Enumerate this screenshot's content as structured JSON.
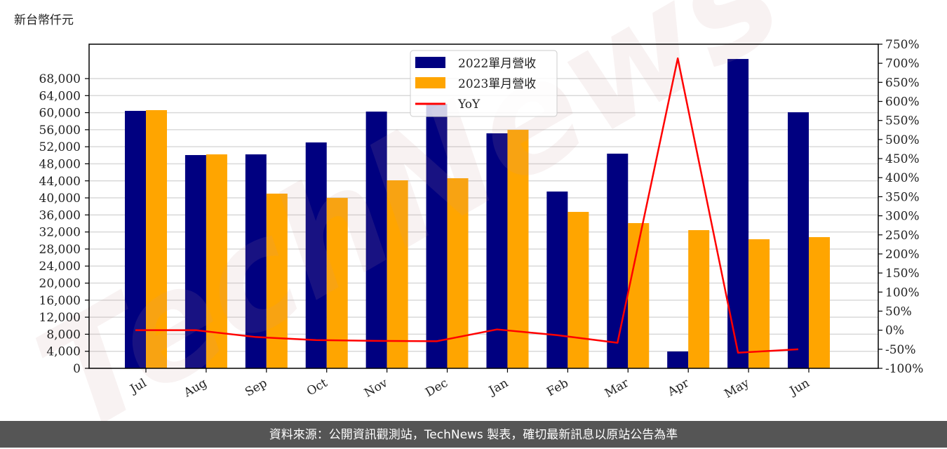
{
  "unit_label": "新台幣仟元",
  "footer": "資料來源：公開資訊觀測站，TechNews 製表，確切最新訊息以原站公告為準",
  "watermark": "TechNews",
  "colors": {
    "series_2022": "#000080",
    "series_2023": "#FFA500",
    "yoy": "#FF0000",
    "grid": "#D9D9D9",
    "footer_bg": "#555555"
  },
  "chart_data": {
    "type": "bar",
    "title": "",
    "xlabel": "",
    "ylabel": "新台幣仟元",
    "y2label": "",
    "categories": [
      "Jul",
      "Aug",
      "Sep",
      "Oct",
      "Nov",
      "Dec",
      "Jan",
      "Feb",
      "Mar",
      "Apr",
      "May",
      "Jun"
    ],
    "series": [
      {
        "name": "2022單月營收",
        "type": "bar",
        "axis": "left",
        "color": "#000080",
        "values": [
          60420,
          50050,
          50210,
          53010,
          60250,
          62070,
          55150,
          41490,
          50380,
          3950,
          72600,
          60090
        ]
      },
      {
        "name": "2023單月營收",
        "type": "bar",
        "axis": "left",
        "color": "#FFA500",
        "values": [
          60590,
          50210,
          41000,
          40000,
          44120,
          44610,
          55970,
          36710,
          34080,
          32430,
          30290,
          30790
        ]
      },
      {
        "name": "YoY",
        "type": "line",
        "axis": "right",
        "color": "#FF0000",
        "values": [
          0,
          0,
          -18,
          -26,
          -28,
          -29,
          2,
          -13,
          -33,
          713,
          -59,
          -50
        ]
      }
    ],
    "ylim": [
      0,
      76000
    ],
    "y_ticks": [
      0,
      4000,
      8000,
      12000,
      16000,
      20000,
      24000,
      28000,
      32000,
      36000,
      40000,
      44000,
      48000,
      52000,
      56000,
      60000,
      64000,
      68000
    ],
    "y_tick_labels": [
      "0",
      "4,000",
      "8,000",
      "12,000",
      "16,000",
      "20,000",
      "24,000",
      "28,000",
      "32,000",
      "36,000",
      "40,000",
      "44,000",
      "48,000",
      "52,000",
      "56,000",
      "60,000",
      "64,000",
      "68,000"
    ],
    "y2lim": [
      -100,
      750
    ],
    "y2_ticks": [
      -100,
      -50,
      0,
      50,
      100,
      150,
      200,
      250,
      300,
      350,
      400,
      450,
      500,
      550,
      600,
      650,
      700,
      750
    ],
    "y2_tick_labels": [
      "-100%",
      "-50%",
      "0%",
      "50%",
      "100%",
      "150%",
      "200%",
      "250%",
      "300%",
      "350%",
      "400%",
      "450%",
      "500%",
      "550%",
      "600%",
      "650%",
      "700%",
      "750%"
    ],
    "grid": true,
    "legend_position": "upper center"
  }
}
